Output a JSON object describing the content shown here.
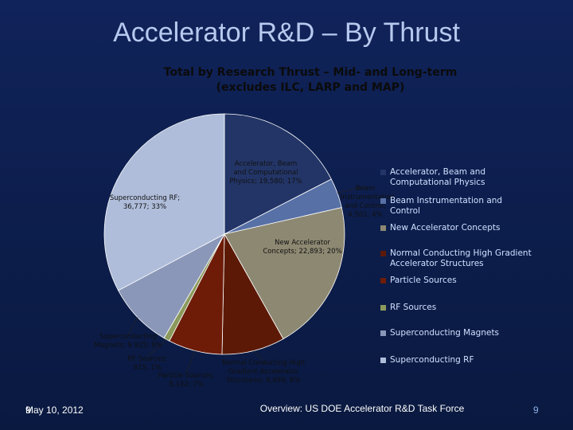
{
  "slide": {
    "title": "Accelerator R&D – By Thrust",
    "footer_date": "May 10, 2012",
    "footer_date_prefix": "9",
    "footer_center": "Overview: US DOE Accelerator R&D Task Force",
    "page_number": "9"
  },
  "chart_data": {
    "type": "pie",
    "title_line1": "Total by Research Thrust – Mid- and Long-term",
    "title_line2": "(excludes ILC, LARP and MAP)",
    "legend_position": "right",
    "slices": [
      {
        "name": "Accelerator, Beam and Computational Physics",
        "value": 19580,
        "percent": 17,
        "label": "Accelerator, Beam and Computational Physics; 19,580; 17%",
        "color": "#233567"
      },
      {
        "name": "Beam Instrumentation and Control",
        "value": 4501,
        "percent": 4,
        "label": "Beam Instrumentation and Control; 4,501; 4%",
        "color": "#5770a6"
      },
      {
        "name": "New Accelerator Concepts",
        "value": 22893,
        "percent": 20,
        "label": "New Accelerator Concepts; 22,893; 20%",
        "color": "#8d8872"
      },
      {
        "name": "Normal Conducting High Gradient Accelerator Structures",
        "value": 9499,
        "percent": 8,
        "label": "Normal Conducting High Gradient Accelerator Structures; 9,499; 8%",
        "color": "#5c1a06"
      },
      {
        "name": "Particle Sources",
        "value": 8142,
        "percent": 7,
        "label": "Particle Sources; 8,142; 7%",
        "color": "#6e1c08"
      },
      {
        "name": "RF Sources",
        "value": 915,
        "percent": 1,
        "label": "RF Sources; 915; 1%",
        "color": "#8b9a5c"
      },
      {
        "name": "Superconducting Magnets",
        "value": 9925,
        "percent": 9,
        "label": "Superconducting Magnets; 9,925; 9%",
        "color": "#8a97b8"
      },
      {
        "name": "Superconducting RF",
        "value": 36777,
        "percent": 33,
        "label": "Superconducting RF; 36,777; 33%",
        "color": "#afbdda"
      }
    ],
    "legend": [
      "Accelerator, Beam and Computational Physics",
      "Beam Instrumentation and Control",
      "New Accelerator Concepts",
      "Normal Conducting High Gradient Accelerator Structures",
      "Particle Sources",
      "RF Sources",
      "Superconducting Magnets",
      "Superconducting RF"
    ]
  }
}
